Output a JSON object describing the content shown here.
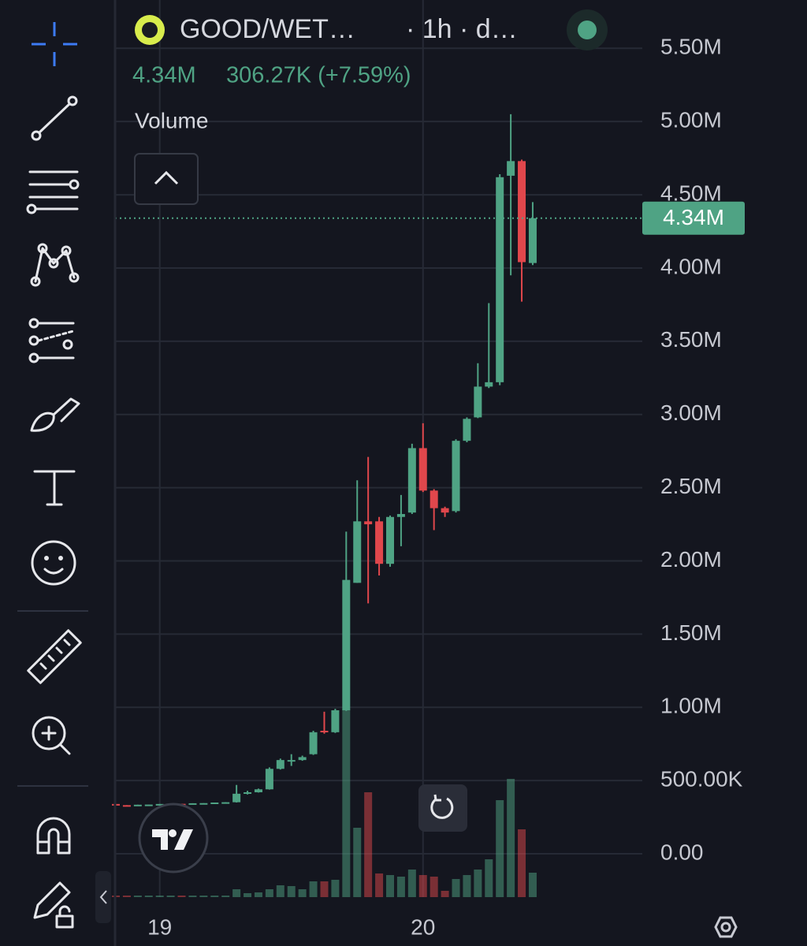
{
  "chart_data": {
    "type": "candlestick",
    "header": {
      "symbol": "GOOD/WET…",
      "interval": "· 1h · d…",
      "last": "4.34M",
      "change": "306.27K (+7.59%)"
    },
    "volume_label": "Volume",
    "categories": [
      null,
      null,
      null,
      null,
      "19",
      null,
      null,
      null,
      null,
      null,
      null,
      null,
      null,
      null,
      null,
      null,
      null,
      null,
      null,
      null,
      null,
      null,
      null,
      null,
      null,
      null,
      null,
      null,
      "20",
      null,
      null,
      null,
      null,
      null,
      null,
      null,
      null,
      null,
      null
    ],
    "open": [
      340000,
      332000,
      330000,
      335000,
      336000,
      340000,
      341000,
      338000,
      345000,
      346000,
      350000,
      352000,
      410000,
      420000,
      440000,
      580000,
      630000,
      640000,
      680000,
      840000,
      830000,
      980000,
      1850000,
      2270000,
      2270000,
      1980000,
      2300000,
      2330000,
      2770000,
      2480000,
      2360000,
      2340000,
      2820000,
      2980000,
      3190000,
      3220000,
      4630000,
      4730000,
      4034000
    ],
    "high": [
      340000,
      332000,
      335000,
      336000,
      340000,
      341000,
      341000,
      345000,
      346000,
      350000,
      352000,
      470000,
      430000,
      445000,
      590000,
      650000,
      680000,
      670000,
      840000,
      970000,
      990000,
      2200000,
      2550000,
      2710000,
      2300000,
      2310000,
      2450000,
      2800000,
      2940000,
      2490000,
      2370000,
      2830000,
      2980000,
      3350000,
      3760000,
      4640000,
      5050000,
      4740000,
      4450000
    ],
    "low": [
      330000,
      330000,
      330000,
      335000,
      336000,
      340000,
      338000,
      338000,
      345000,
      346000,
      350000,
      350000,
      405000,
      418000,
      438000,
      575000,
      600000,
      635000,
      675000,
      820000,
      825000,
      975000,
      1850000,
      1710000,
      1900000,
      1960000,
      2100000,
      2320000,
      2470000,
      2210000,
      2300000,
      2330000,
      2810000,
      2975000,
      3180000,
      3200000,
      3950000,
      3770000,
      4020000
    ],
    "close": [
      330000,
      330000,
      335000,
      336000,
      340000,
      341000,
      338000,
      345000,
      346000,
      350000,
      352000,
      410000,
      420000,
      440000,
      580000,
      640000,
      640000,
      660000,
      830000,
      830000,
      980000,
      1870000,
      2270000,
      2250000,
      1980000,
      2300000,
      2320000,
      2770000,
      2480000,
      2360000,
      2330000,
      2820000,
      2970000,
      3190000,
      3220000,
      4620000,
      4730000,
      4040000,
      4340000
    ],
    "volume": [
      2,
      2,
      2,
      2,
      2,
      2,
      2,
      2,
      2,
      2,
      2,
      10,
      5,
      6,
      10,
      15,
      14,
      10,
      20,
      20,
      22,
      238,
      88,
      133,
      30,
      28,
      26,
      35,
      28,
      26,
      8,
      23,
      28,
      35,
      48,
      123,
      150,
      86,
      31
    ],
    "up_color": "#4fa384",
    "down_color": "#e0474c",
    "ylim": [
      -296000,
      5830000
    ],
    "yticks": [
      {
        "value": 0,
        "label": "0.00"
      },
      {
        "value": 500000,
        "label": "500.00K"
      },
      {
        "value": 1000000,
        "label": "1.00M"
      },
      {
        "value": 1500000,
        "label": "1.50M"
      },
      {
        "value": 2000000,
        "label": "2.00M"
      },
      {
        "value": 2500000,
        "label": "2.50M"
      },
      {
        "value": 3000000,
        "label": "3.00M"
      },
      {
        "value": 3500000,
        "label": "3.50M"
      },
      {
        "value": 4000000,
        "label": "4.00M"
      },
      {
        "value": 4500000,
        "label": "4.50M"
      },
      {
        "value": 5000000,
        "label": "5.00M"
      },
      {
        "value": 5500000,
        "label": "5.50M"
      }
    ],
    "last_price": {
      "value": 4340000,
      "label": "4.34M"
    },
    "grid": true
  }
}
